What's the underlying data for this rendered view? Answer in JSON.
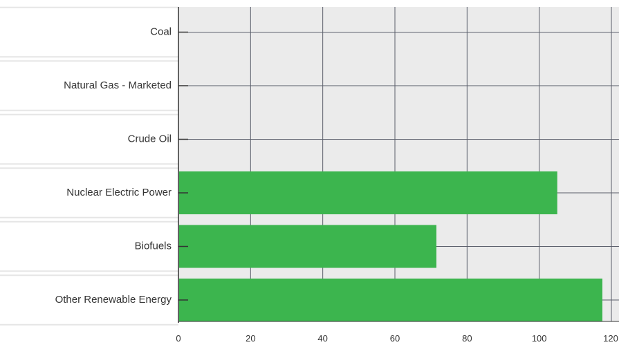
{
  "chart_data": {
    "type": "bar",
    "orientation": "horizontal",
    "categories": [
      "Coal",
      "Natural Gas - Marketed",
      "Crude Oil",
      "Nuclear Electric Power",
      "Biofuels",
      "Other Renewable Energy"
    ],
    "values": [
      0,
      0,
      0,
      105,
      71.5,
      117.5
    ],
    "xlim": [
      0,
      120
    ],
    "xticks": [
      0,
      20,
      40,
      60,
      80,
      100,
      120
    ],
    "grid": true,
    "colors": {
      "bar": "#3cb54e",
      "plot_background": "#ebebeb",
      "grid": "#5a5e6a",
      "label_band": "#e6e6e6"
    }
  }
}
